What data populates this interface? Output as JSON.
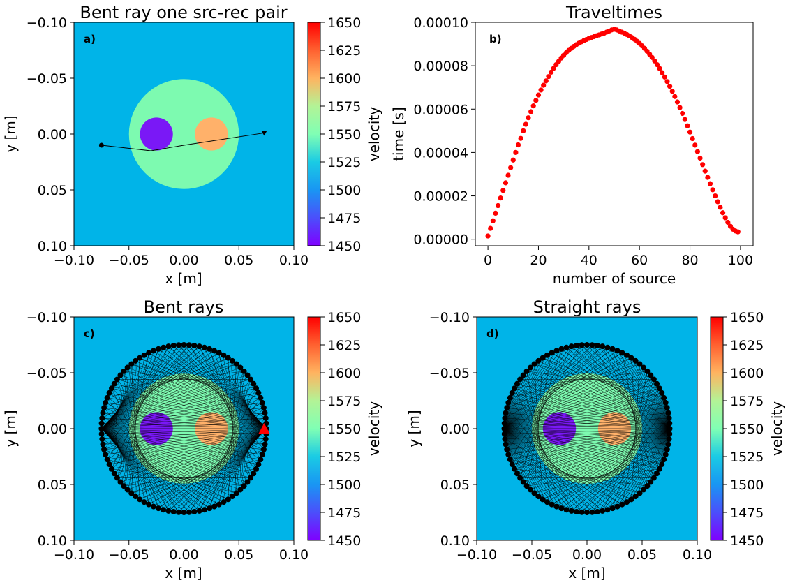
{
  "chart_data": [
    {
      "id": "a",
      "type": "heatmap",
      "title": "Bent ray one src-rec pair",
      "panel_label": "a)",
      "xlabel": "x [m]",
      "ylabel": "y [m]",
      "xlim": [
        -0.1,
        0.1
      ],
      "ylim": [
        -0.1,
        0.1
      ],
      "y_inverted": true,
      "xticks": [
        "-0.10",
        "-0.05",
        "0.00",
        "0.05",
        "0.10"
      ],
      "yticks": [
        "-0.10",
        "-0.05",
        "0.00",
        "0.05",
        "0.10"
      ],
      "velocity_model": {
        "background": 1500,
        "large_circle": {
          "center": [
            0.0,
            0.0
          ],
          "radius": 0.05,
          "value": 1540
        },
        "left_circle": {
          "center": [
            -0.025,
            0.0
          ],
          "radius": 0.015,
          "value": 1450
        },
        "right_circle": {
          "center": [
            0.025,
            0.0
          ],
          "radius": 0.015,
          "value": 1600
        }
      },
      "ray": {
        "source": [
          -0.075,
          0.01
        ],
        "receiver": [
          0.073,
          -0.001
        ],
        "path": [
          [
            -0.075,
            0.01
          ],
          [
            -0.03,
            0.015
          ],
          [
            0.0,
            0.01
          ],
          [
            0.073,
            -0.001
          ]
        ]
      },
      "colorbar": {
        "label": "velocity",
        "min": 1450,
        "max": 1650,
        "ticks": [
          "1450",
          "1475",
          "1500",
          "1525",
          "1550",
          "1575",
          "1600",
          "1625",
          "1650"
        ]
      }
    },
    {
      "id": "b",
      "type": "scatter",
      "title": "Traveltimes",
      "panel_label": "b)",
      "xlabel": "number of source",
      "ylabel": "time [s]",
      "xlim": [
        -5,
        105
      ],
      "ylim": [
        -3e-06,
        0.0001
      ],
      "xticks": [
        "0",
        "20",
        "40",
        "60",
        "80",
        "100"
      ],
      "yticks": [
        "0.00000",
        "0.00002",
        "0.00004",
        "0.00006",
        "0.00008",
        "0.00010"
      ],
      "ytick_values": [
        0,
        2e-05,
        4e-05,
        6e-05,
        8e-05,
        0.0001
      ],
      "xtick_values": [
        0,
        20,
        40,
        60,
        80,
        100
      ],
      "point_color": "#ff0000",
      "x_start": 0,
      "x_end": 99,
      "y": [
        1.5e-06,
        5e-06,
        8.5e-06,
        1.2e-05,
        1.55e-05,
        1.9e-05,
        2.25e-05,
        2.6e-05,
        2.95e-05,
        3.3e-05,
        3.65e-05,
        4e-05,
        4.35e-05,
        4.65e-05,
        5e-05,
        5.3e-05,
        5.6e-05,
        5.88e-05,
        6.15e-05,
        6.4e-05,
        6.65e-05,
        6.88e-05,
        7.1e-05,
        7.3e-05,
        7.5e-05,
        7.7e-05,
        7.88e-05,
        8.05e-05,
        8.2e-05,
        8.35e-05,
        8.48e-05,
        8.6e-05,
        8.71e-05,
        8.8e-05,
        8.89e-05,
        8.97e-05,
        9.04e-05,
        9.1e-05,
        9.16e-05,
        9.21e-05,
        9.26e-05,
        9.3e-05,
        9.34e-05,
        9.38e-05,
        9.42e-05,
        9.46e-05,
        9.5e-05,
        9.55e-05,
        9.6e-05,
        9.65e-05,
        9.68e-05,
        9.65e-05,
        9.6e-05,
        9.55e-05,
        9.5e-05,
        9.44e-05,
        9.38e-05,
        9.3e-05,
        9.22e-05,
        9.13e-05,
        9.03e-05,
        8.92e-05,
        8.8e-05,
        8.67e-05,
        8.53e-05,
        8.38e-05,
        8.22e-05,
        8.05e-05,
        7.87e-05,
        7.68e-05,
        7.48e-05,
        7.27e-05,
        7.05e-05,
        6.82e-05,
        6.58e-05,
        6.33e-05,
        6.07e-05,
        5.8e-05,
        5.52e-05,
        5.23e-05,
        4.94e-05,
        4.64e-05,
        4.34e-05,
        4.04e-05,
        3.74e-05,
        3.44e-05,
        3.14e-05,
        2.85e-05,
        2.56e-05,
        2.28e-05,
        2e-05,
        1.73e-05,
        1.47e-05,
        1.22e-05,
        9.9e-06,
        7.8e-06,
        6e-06,
        4.6e-06,
        3.8e-06,
        3.4e-06
      ]
    },
    {
      "id": "c",
      "type": "heatmap",
      "title": "Bent rays",
      "panel_label": "c)",
      "xlabel": "x [m]",
      "ylabel": "y [m]",
      "xlim": [
        -0.1,
        0.1
      ],
      "ylim": [
        -0.1,
        0.1
      ],
      "y_inverted": true,
      "xticks": [
        "-0.10",
        "-0.05",
        "0.00",
        "0.05",
        "0.10"
      ],
      "yticks": [
        "-0.10",
        "-0.05",
        "0.00",
        "0.05",
        "0.10"
      ],
      "transducer_ring": {
        "center": [
          0,
          0
        ],
        "radius": 0.075,
        "count": 100
      },
      "highlight_receiver": [
        0.073,
        0.0
      ],
      "colorbar": {
        "label": "velocity",
        "min": 1450,
        "max": 1650,
        "ticks": [
          "1450",
          "1475",
          "1500",
          "1525",
          "1550",
          "1575",
          "1600",
          "1625",
          "1650"
        ]
      }
    },
    {
      "id": "d",
      "type": "heatmap",
      "title": "Straight rays",
      "panel_label": "d)",
      "xlabel": "x [m]",
      "ylabel": "y [m]",
      "xlim": [
        -0.1,
        0.1
      ],
      "ylim": [
        -0.1,
        0.1
      ],
      "y_inverted": true,
      "xticks": [
        "-0.10",
        "-0.05",
        "0.00",
        "0.05",
        "0.10"
      ],
      "yticks": [
        "-0.10",
        "-0.05",
        "0.00",
        "0.05",
        "0.10"
      ],
      "transducer_ring": {
        "center": [
          0,
          0
        ],
        "radius": 0.075,
        "count": 100
      },
      "colorbar": {
        "label": "velocity",
        "min": 1450,
        "max": 1650,
        "ticks": [
          "1450",
          "1475",
          "1500",
          "1525",
          "1550",
          "1575",
          "1600",
          "1625",
          "1650"
        ]
      }
    }
  ],
  "colors": {
    "background": "#00b4e8",
    "large_circle": "#7dfab0",
    "left_circle": "#7a18f6",
    "right_circle": "#ffb16a",
    "ring_points": "#000000",
    "receiver_marker": "#ff0000"
  }
}
